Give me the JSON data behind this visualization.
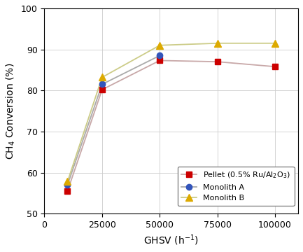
{
  "series": [
    {
      "label": "Pellet (0.5% Ru/Al$_2$O$_3$)",
      "x": [
        10000,
        25000,
        50000,
        75000,
        100000
      ],
      "y": [
        55.5,
        80.2,
        87.3,
        87.0,
        85.8
      ],
      "color": "#cc0000",
      "line_color": "#c8a8a8",
      "marker": "s",
      "markersize": 6
    },
    {
      "label": "Monolith A",
      "x": [
        10000,
        25000,
        50000
      ],
      "y": [
        57.0,
        81.5,
        88.5
      ],
      "color": "#3355bb",
      "line_color": "#aaaaaa",
      "marker": "o",
      "markersize": 6
    },
    {
      "label": "Monolith B",
      "x": [
        10000,
        25000,
        50000,
        75000,
        100000
      ],
      "y": [
        57.8,
        83.2,
        91.0,
        91.5,
        91.5
      ],
      "color": "#ddaa00",
      "line_color": "#cccc88",
      "marker": "^",
      "markersize": 7
    }
  ],
  "xlabel": "GHSV (h$^{-1}$)",
  "ylabel": "CH$_4$ Conversion (%)",
  "xlim": [
    0,
    110000
  ],
  "ylim": [
    50,
    100
  ],
  "xticks": [
    0,
    25000,
    50000,
    75000,
    100000
  ],
  "yticks": [
    50,
    60,
    70,
    80,
    90,
    100
  ],
  "grid": true,
  "figsize": [
    4.33,
    3.6
  ],
  "dpi": 100
}
